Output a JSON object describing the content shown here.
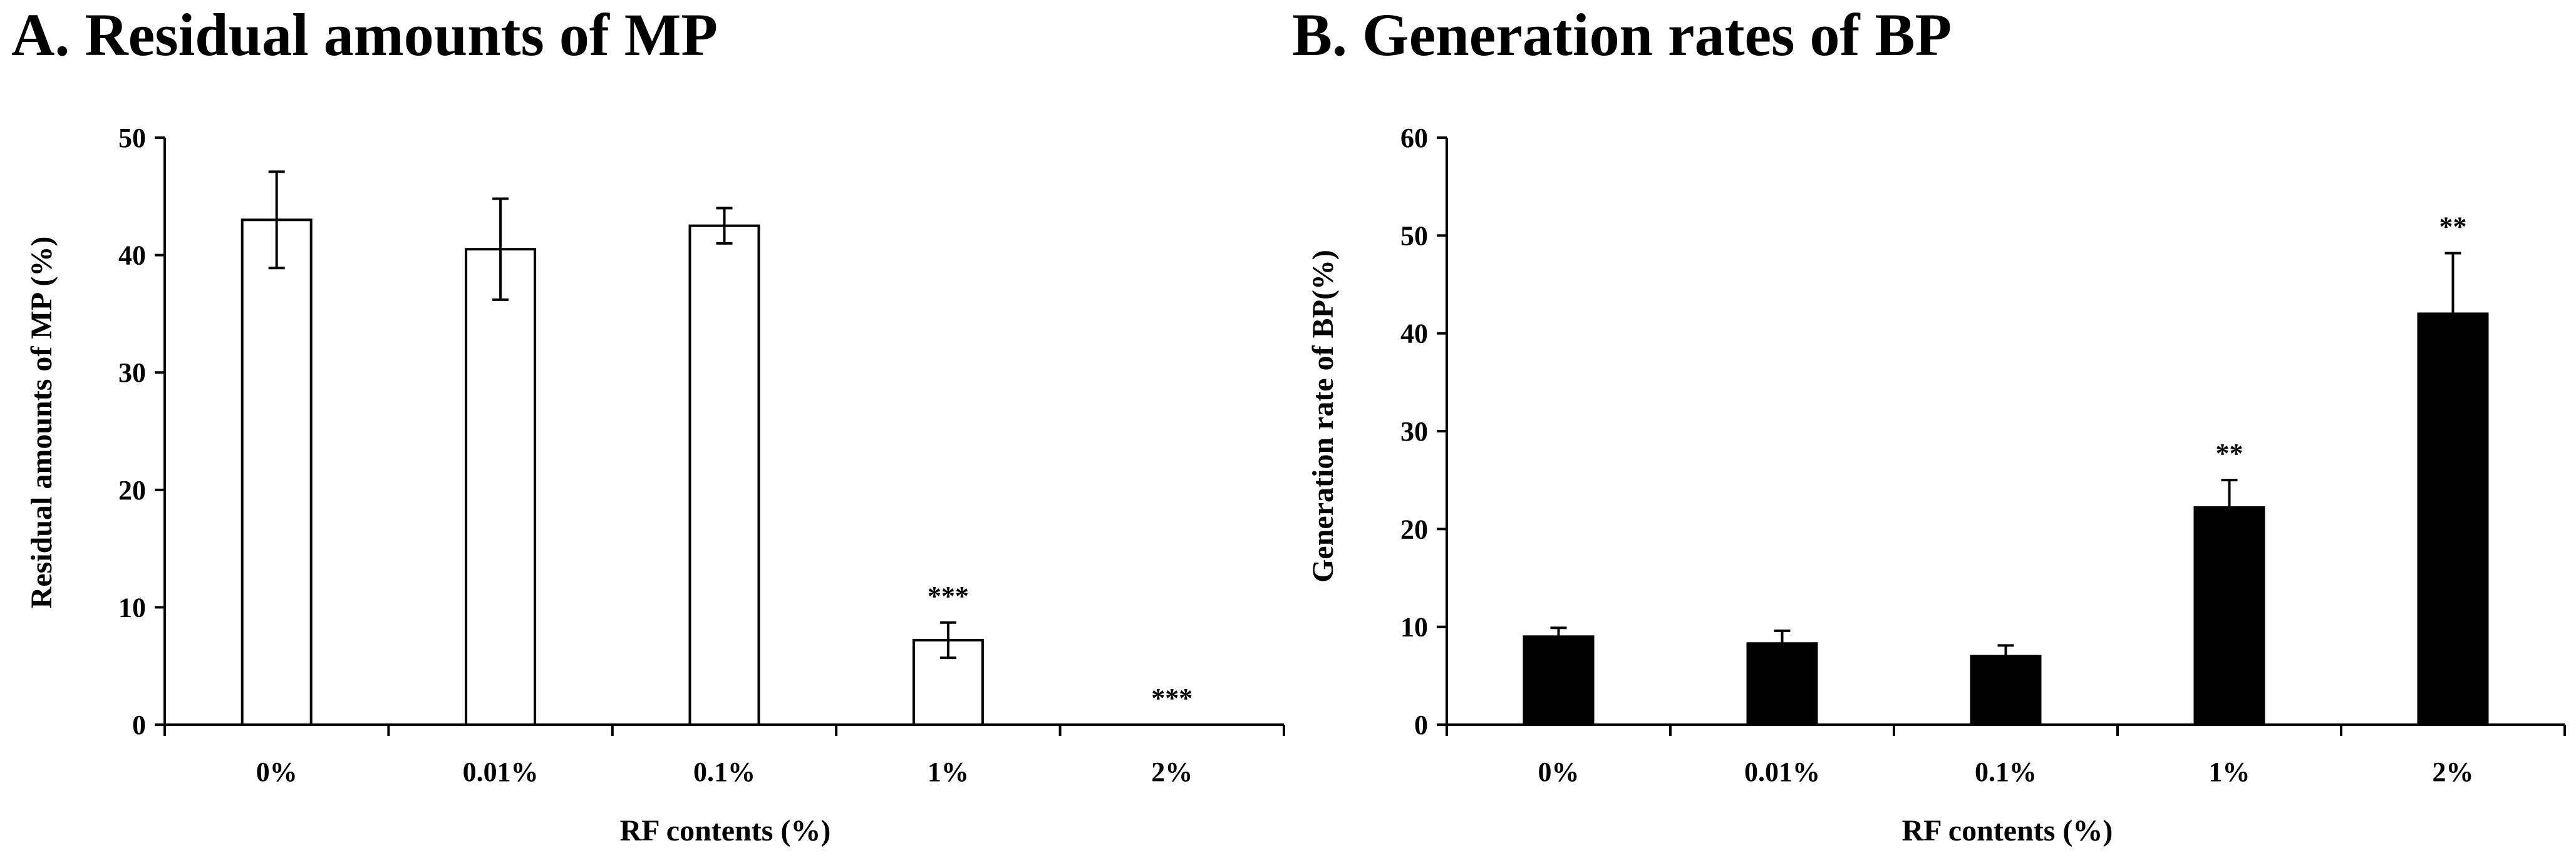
{
  "chart_data": [
    {
      "type": "bar",
      "title": "A. Residual amounts of MP",
      "xlabel": "RF contents (%)",
      "ylabel": "Residual amounts of MP (%)",
      "categories": [
        "0%",
        "0.01%",
        "0.1%",
        "1%",
        "2%"
      ],
      "values": [
        43.0,
        40.5,
        42.5,
        7.2,
        0
      ],
      "errors": [
        4.1,
        4.3,
        1.5,
        1.5,
        0
      ],
      "significance": [
        "",
        "",
        "",
        "***",
        "***"
      ],
      "ylim": [
        0,
        50
      ],
      "yticks": [
        0,
        10,
        20,
        30,
        40,
        50
      ],
      "bar_fill": "#ffffff",
      "bar_stroke": "#000000",
      "grid": false
    },
    {
      "type": "bar",
      "title": "B. Generation rates of BP",
      "xlabel": "RF contents (%)",
      "ylabel": "Generation rate of BP(%)",
      "categories": [
        "0%",
        "0.01%",
        "0.1%",
        "1%",
        "2%"
      ],
      "values": [
        9.0,
        8.3,
        7.0,
        22.2,
        42.0
      ],
      "errors": [
        0.9,
        1.3,
        1.1,
        2.8,
        6.2
      ],
      "significance": [
        "",
        "",
        "",
        "**",
        "**"
      ],
      "ylim": [
        0,
        60
      ],
      "yticks": [
        0,
        10,
        20,
        30,
        40,
        50,
        60
      ],
      "bar_fill": "#000000",
      "bar_stroke": "#000000",
      "grid": false
    }
  ]
}
